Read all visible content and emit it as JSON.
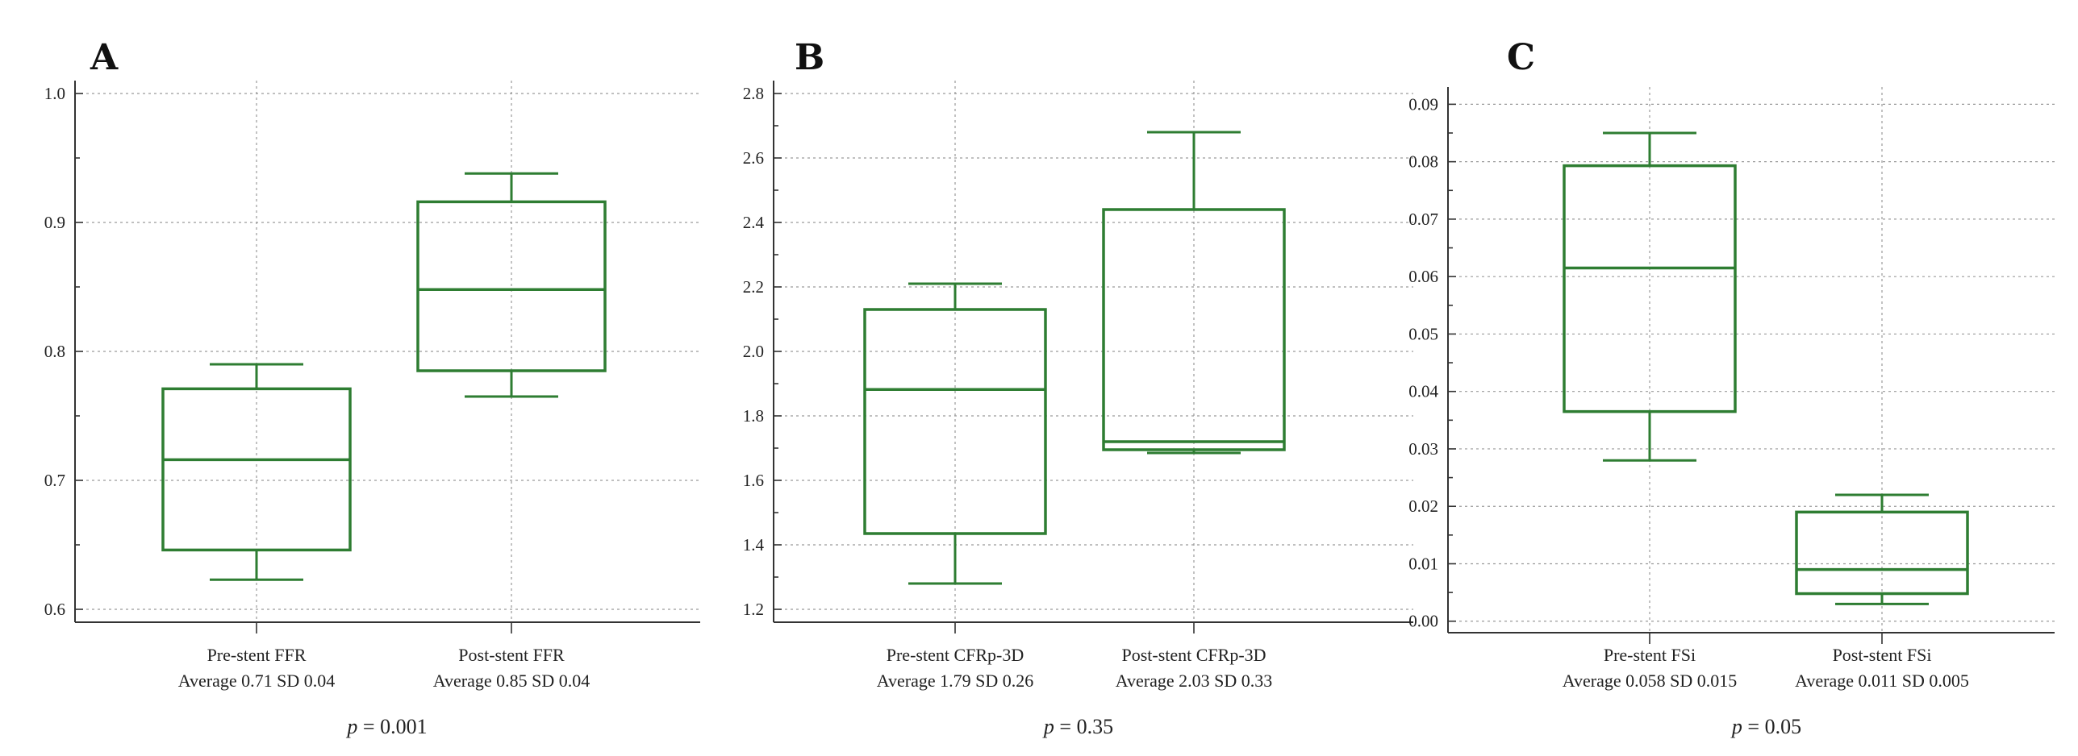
{
  "chart_data": [
    {
      "type": "box",
      "panel": "A",
      "ylim": [
        0.59,
        1.01
      ],
      "ytick_labels": [
        "0.6",
        "0.7",
        "0.8",
        "0.9",
        "1.0"
      ],
      "yticks": [
        0.6,
        0.7,
        0.8,
        0.9,
        1.0
      ],
      "series": [
        {
          "label": "Pre-stent FFR",
          "stats": "Average 0.71 SD 0.04",
          "min": 0.623,
          "q1": 0.646,
          "median": 0.716,
          "q3": 0.771,
          "max": 0.79
        },
        {
          "label": "Post-stent FFR",
          "stats": "Average 0.85 SD 0.04",
          "min": 0.765,
          "q1": 0.785,
          "median": 0.848,
          "q3": 0.916,
          "max": 0.938
        }
      ],
      "p_prefix": "p",
      "p_value": " = 0.001"
    },
    {
      "type": "box",
      "panel": "B",
      "ylim": [
        1.16,
        2.84
      ],
      "ytick_labels": [
        "1.2",
        "1.4",
        "1.6",
        "1.8",
        "2.0",
        "2.2",
        "2.4",
        "2.6",
        "2.8"
      ],
      "yticks": [
        1.2,
        1.4,
        1.6,
        1.8,
        2.0,
        2.2,
        2.4,
        2.6,
        2.8
      ],
      "series": [
        {
          "label": "Pre-stent CFRp-3D",
          "stats": "Average 1.79 SD 0.26",
          "min": 1.28,
          "q1": 1.435,
          "median": 1.882,
          "q3": 2.13,
          "max": 2.21
        },
        {
          "label": "Post-stent CFRp-3D",
          "stats": "Average 2.03 SD 0.33",
          "min": 1.685,
          "q1": 1.695,
          "median": 1.72,
          "q3": 2.44,
          "max": 2.68
        }
      ],
      "p_prefix": "p",
      "p_value": " = 0.35"
    },
    {
      "type": "box",
      "panel": "C",
      "ylim": [
        -0.002,
        0.093
      ],
      "ytick_labels": [
        "0.00",
        "0.01",
        "0.02",
        "0.03",
        "0.04",
        "0.05",
        "0.06",
        "0.07",
        "0.08",
        "0.09"
      ],
      "yticks": [
        0.0,
        0.01,
        0.02,
        0.03,
        0.04,
        0.05,
        0.06,
        0.07,
        0.08,
        0.09
      ],
      "series": [
        {
          "label": "Pre-stent FSi",
          "stats": "Average 0.058 SD 0.015",
          "min": 0.028,
          "q1": 0.0365,
          "median": 0.0615,
          "q3": 0.0793,
          "max": 0.085
        },
        {
          "label": "Post-stent FSi",
          "stats": "Average 0.011 SD 0.005",
          "min": 0.003,
          "q1": 0.0048,
          "median": 0.009,
          "q3": 0.019,
          "max": 0.022
        }
      ],
      "p_prefix": "p",
      "p_value": " = 0.05"
    }
  ]
}
